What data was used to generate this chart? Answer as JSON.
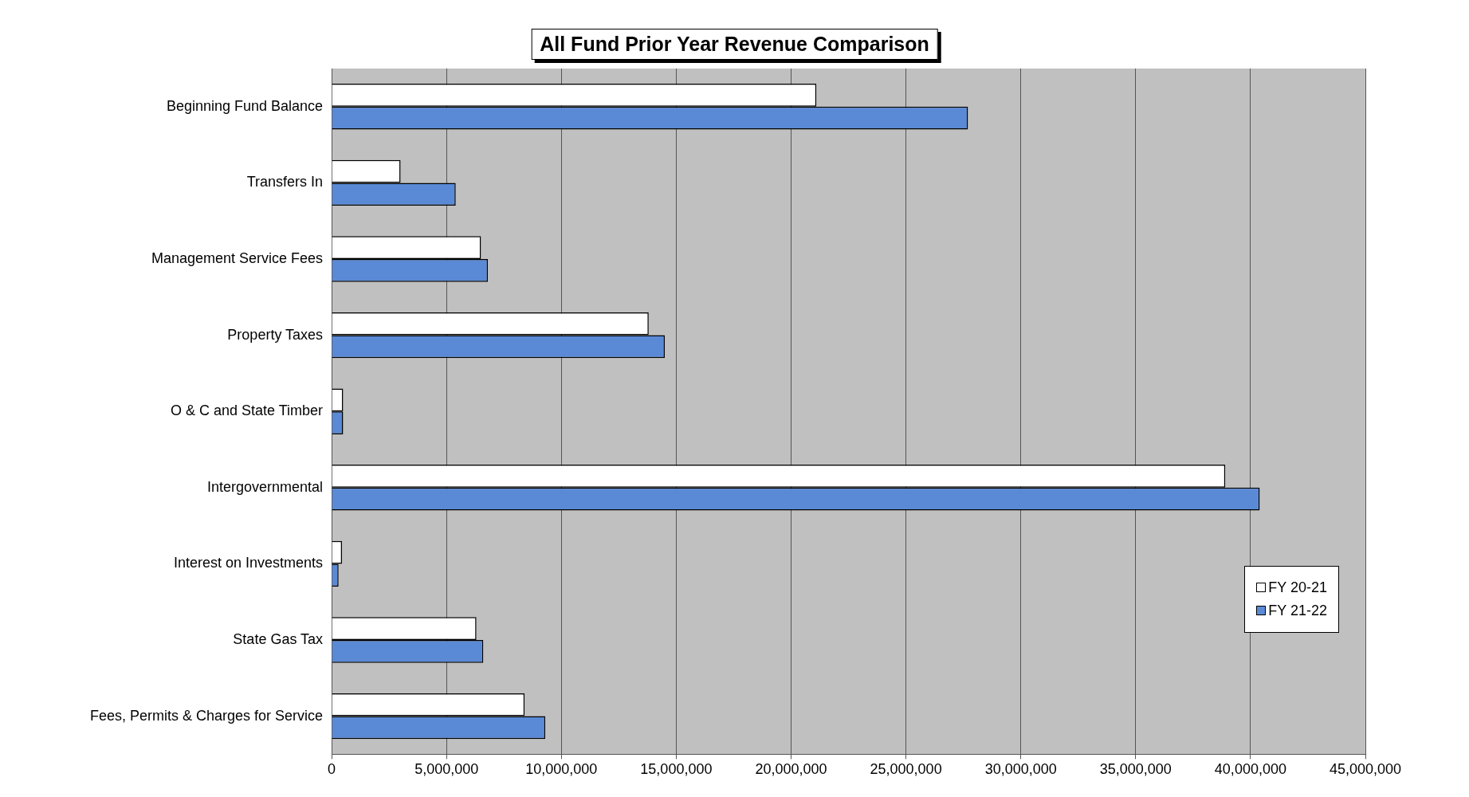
{
  "chart_data": {
    "type": "bar",
    "orientation": "horizontal",
    "title": "All Fund Prior Year Revenue Comparison",
    "categories": [
      "Beginning Fund Balance",
      "Transfers In",
      "Management Service Fees",
      "Property Taxes",
      "O & C and State Timber",
      "Intergovernmental",
      "Interest on Investments",
      "State Gas Tax",
      "Fees, Permits & Charges for Service"
    ],
    "series": [
      {
        "name": "FY 20-21",
        "color": "#ffffff",
        "values": [
          21100000,
          3000000,
          6500000,
          13800000,
          500000,
          38900000,
          450000,
          6300000,
          8400000
        ]
      },
      {
        "name": "FY 21-22",
        "color": "#5a8ad6",
        "values": [
          27700000,
          5400000,
          6800000,
          14500000,
          500000,
          40400000,
          300000,
          6600000,
          9300000
        ]
      }
    ],
    "xlim": [
      0,
      45000000
    ],
    "xticks": [
      0,
      {
        "value": 5000000,
        "label": "5,000,000"
      },
      {
        "value": 10000000,
        "label": "10,000,000"
      },
      {
        "value": 15000000,
        "label": "15,000,000"
      },
      {
        "value": 20000000,
        "label": "20,000,000"
      },
      {
        "value": 25000000,
        "label": "25,000,000"
      },
      {
        "value": 30000000,
        "label": "30,000,000"
      },
      {
        "value": 35000000,
        "label": "35,000,000"
      },
      {
        "value": 40000000,
        "label": "40,000,000"
      },
      {
        "value": 45000000,
        "label": "45,000,000"
      }
    ],
    "grid": "x",
    "legend": "bottom right"
  }
}
